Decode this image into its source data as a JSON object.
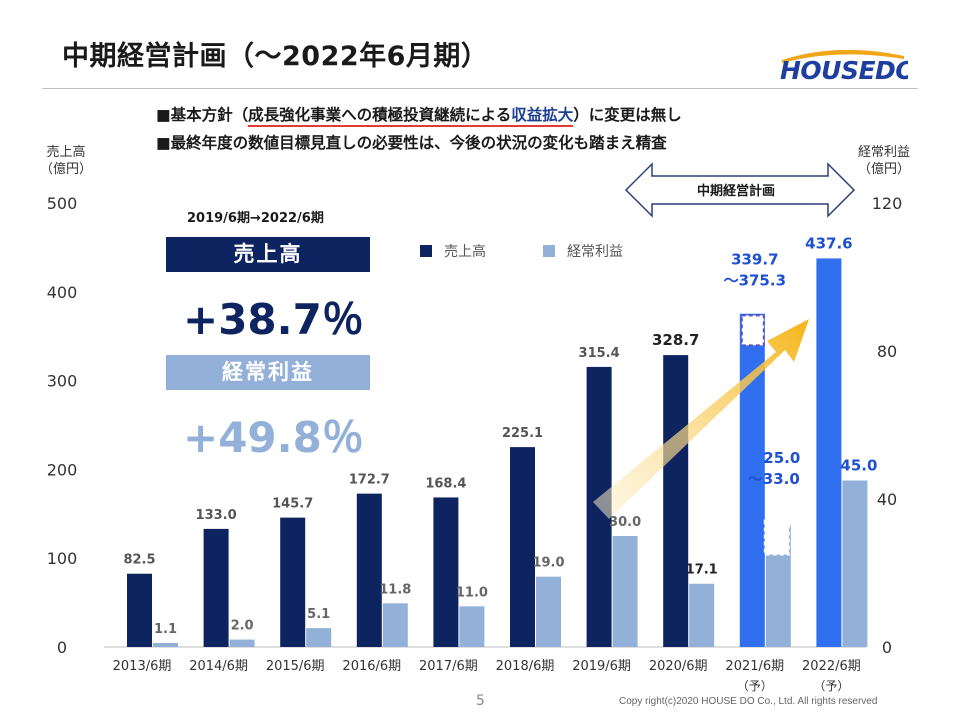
{
  "title": "中期経営計画（〜2022年6月期）",
  "logo_text": "HOUSEDO",
  "policy": {
    "line1_prefix": "■基本方針（",
    "line1_underlined_a": "成長強化事業への積極投資継続による",
    "line1_underlined_b": "収益拡大",
    "line1_suffix": "）に変更は無し",
    "line2": "■最終年度の数値目標見直しの必要性は、今後の状況の変化も踏まえ精査"
  },
  "left_axis_unit": [
    "売上高",
    "（億円）"
  ],
  "right_axis_unit": [
    "経常利益",
    "（億円）"
  ],
  "summary": {
    "period": "2019/6期→2022/6期",
    "sales_label": "売上高",
    "sales_growth": "+38.7％",
    "profit_label": "経常利益",
    "profit_growth": "+49.8％"
  },
  "plan_label": "中期経営計画",
  "page_number": "5",
  "copyright": "Copy right(c)2020  HOUSE DO Co., Ltd. All rights reserved",
  "colors": {
    "sales": "#0d2461",
    "profit": "#93b0d9",
    "forecast_sales": "#2f6ff0",
    "arrow": "#f5b82a",
    "forecast_text": "#1e50d0",
    "sales_banner": "#0d2461",
    "profit_banner": "#93b0d9"
  },
  "chart_data": {
    "type": "bar",
    "categories": [
      "2013/6期",
      "2014/6期",
      "2015/6期",
      "2016/6期",
      "2017/6期",
      "2018/6期",
      "2019/6期",
      "2020/6期",
      "2021/6期",
      "2022/6期"
    ],
    "category_notes": [
      "",
      "",
      "",
      "",
      "",
      "",
      "",
      "",
      "（予）",
      "（予）"
    ],
    "series": [
      {
        "name": "売上高",
        "axis": "left",
        "values": [
          82.5,
          133.0,
          145.7,
          172.7,
          168.4,
          225.1,
          315.4,
          328.7,
          375.3,
          437.6
        ],
        "labels": [
          "82.5",
          "133.0",
          "145.7",
          "172.7",
          "168.4",
          "225.1",
          "315.4",
          "328.7",
          "339.7\n〜375.3",
          "437.6"
        ],
        "range_low": [
          null,
          null,
          null,
          null,
          null,
          null,
          null,
          null,
          339.7,
          null
        ]
      },
      {
        "name": "経常利益",
        "axis": "right",
        "values": [
          1.1,
          2.0,
          5.1,
          11.8,
          11.0,
          19.0,
          30.0,
          17.1,
          33.0,
          45.0
        ],
        "labels": [
          "1.1",
          "2.0",
          "5.1",
          "11.8",
          "11.0",
          "19.0",
          "30.0",
          "17.1",
          "25.0\n〜33.0",
          "45.0"
        ],
        "range_low": [
          null,
          null,
          null,
          null,
          null,
          null,
          null,
          null,
          25.0,
          null
        ]
      }
    ],
    "forecast_from_index": 8,
    "ylim_left": [
      0,
      500
    ],
    "yticks_left": [
      0,
      100,
      200,
      300,
      400,
      500
    ],
    "ylim_right": [
      0,
      120
    ],
    "yticks_right": [
      0,
      40,
      80,
      120
    ],
    "grid": false,
    "legend_position": "top"
  }
}
